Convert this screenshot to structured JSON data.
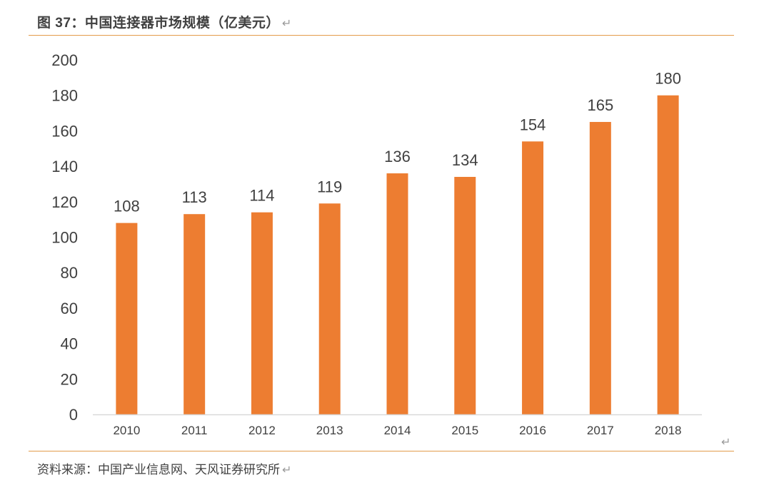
{
  "figure": {
    "title": "图 37：中国连接器市场规模（亿美元）",
    "return_mark": "↵",
    "source": "资料来源：中国产业信息网、天风证券研究所"
  },
  "colors": {
    "bar": "#ED7D31",
    "rule": "#E39B4B",
    "axis": "#D9D9D9",
    "text": "#404040"
  },
  "chart_data": {
    "type": "bar",
    "categories": [
      "2010",
      "2011",
      "2012",
      "2013",
      "2014",
      "2015",
      "2016",
      "2017",
      "2018"
    ],
    "values": [
      108,
      113,
      114,
      119,
      136,
      134,
      154,
      165,
      180
    ],
    "title": "中国连接器市场规模（亿美元）",
    "xlabel": "",
    "ylabel": "",
    "ylim": [
      0,
      200
    ],
    "yticks": [
      0,
      20,
      40,
      60,
      80,
      100,
      120,
      140,
      160,
      180,
      200
    ],
    "grid": false,
    "legend": "none",
    "data_labels": true
  }
}
